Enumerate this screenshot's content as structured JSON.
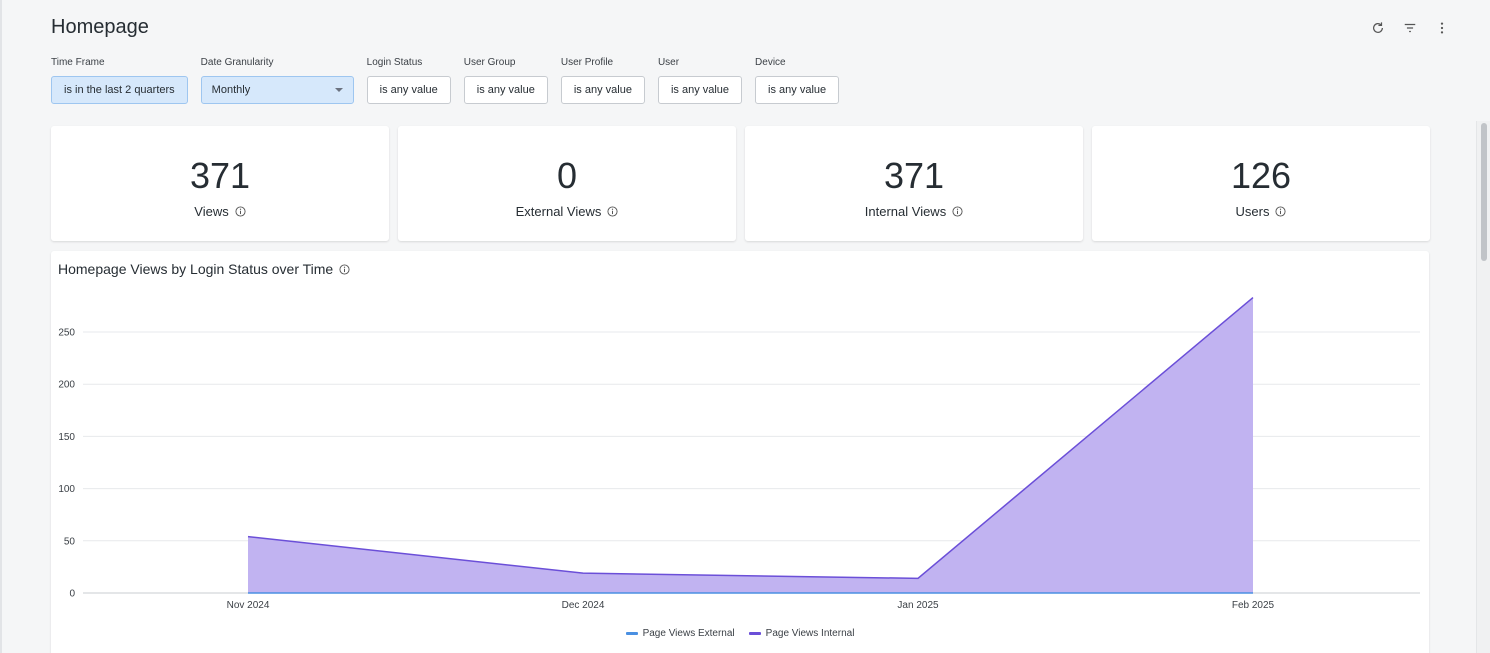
{
  "page": {
    "title": "Homepage"
  },
  "header_actions": {
    "refresh": "refresh-icon",
    "filter": "filter-icon",
    "more": "more-vertical-icon"
  },
  "filters": [
    {
      "label": "Time Frame",
      "value": "is in the last 2 quarters",
      "active": true
    },
    {
      "label": "Date Granularity",
      "value": "Monthly",
      "dropdown": true
    },
    {
      "label": "Login Status",
      "value": "is any value"
    },
    {
      "label": "User Group",
      "value": "is any value"
    },
    {
      "label": "User Profile",
      "value": "is any value"
    },
    {
      "label": "User",
      "value": "is any value"
    },
    {
      "label": "Device",
      "value": "is any value"
    }
  ],
  "kpis": [
    {
      "value": "371",
      "label": "Views"
    },
    {
      "value": "0",
      "label": "External Views"
    },
    {
      "value": "371",
      "label": "Internal Views"
    },
    {
      "value": "126",
      "label": "Users"
    }
  ],
  "chart": {
    "title": "Homepage Views by Login Status over Time"
  },
  "chart_data": {
    "type": "area",
    "title": "Homepage Views by Login Status over Time",
    "categories": [
      "Nov 2024",
      "Dec 2024",
      "Jan 2025",
      "Feb 2025"
    ],
    "series": [
      {
        "name": "Page Views External",
        "values": [
          0,
          0,
          0,
          0
        ],
        "color": "#4a90e2"
      },
      {
        "name": "Page Views Internal",
        "values": [
          54,
          19,
          14,
          283
        ],
        "color": "#6b4fd8",
        "fill": "#c1b3f1"
      }
    ],
    "y_ticks": [
      "0",
      "50",
      "100",
      "150",
      "200",
      "250"
    ],
    "ylim": [
      0,
      250
    ],
    "grid": true,
    "legend": "bottom"
  },
  "colors": {
    "accent": "#d6e8fb",
    "series_internal": "#6b4fd8",
    "series_external": "#4a90e2"
  }
}
